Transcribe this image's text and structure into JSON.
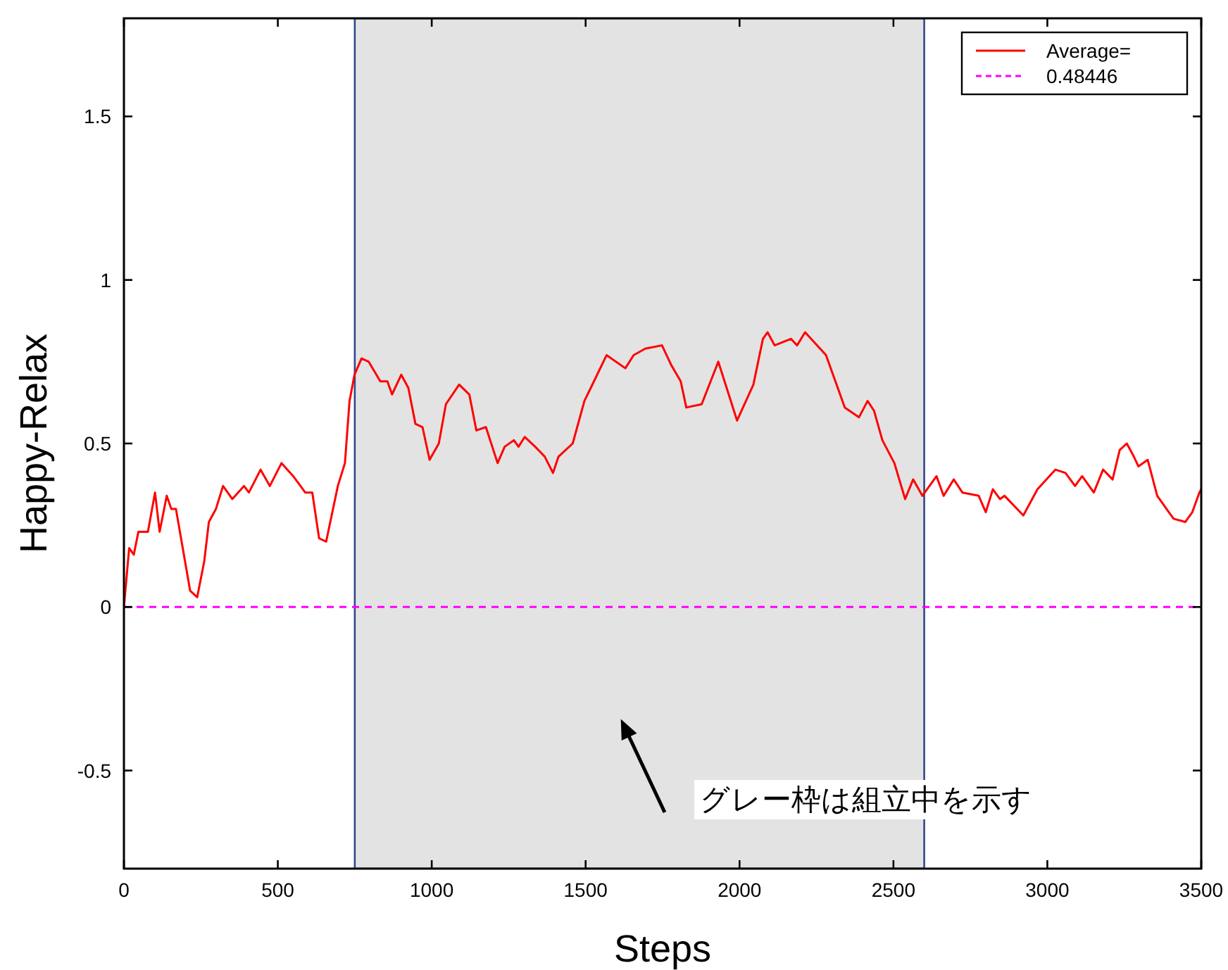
{
  "chart_data": {
    "type": "line",
    "xlabel": "Steps",
    "ylabel": "Happy-Relax",
    "xlim": [
      0,
      3500
    ],
    "ylim": [
      -0.8,
      1.8
    ],
    "xticks": [
      0,
      500,
      1000,
      1500,
      2000,
      2500,
      3000,
      3500
    ],
    "yticks": [
      {
        "value": -0.5,
        "label": "-0.5"
      },
      0,
      0.5,
      1,
      1.5
    ],
    "grid": false,
    "legend": "top right",
    "line_style": "solid",
    "marker": "none",
    "series": [
      {
        "name": "Average=",
        "color": "#ff0000",
        "x": [
          0,
          17,
          32,
          47,
          78,
          101,
          116,
          139,
          154,
          169,
          215,
          238,
          261,
          276,
          299,
          322,
          352,
          390,
          406,
          444,
          474,
          512,
          550,
          589,
          612,
          634,
          657,
          695,
          718,
          733,
          749,
          772,
          795,
          833,
          856,
          871,
          901,
          924,
          947,
          970,
          993,
          1023,
          1046,
          1089,
          1122,
          1145,
          1176,
          1214,
          1237,
          1267,
          1282,
          1302,
          1336,
          1367,
          1394,
          1412,
          1458,
          1496,
          1527,
          1568,
          1629,
          1656,
          1694,
          1748,
          1778,
          1809,
          1827,
          1877,
          1931,
          1992,
          2045,
          2076,
          2091,
          2114,
          2167,
          2187,
          2213,
          2281,
          2342,
          2388,
          2416,
          2437,
          2464,
          2503,
          2538,
          2564,
          2594,
          2640,
          2663,
          2696,
          2724,
          2777,
          2800,
          2823,
          2846,
          2861,
          2922,
          2968,
          3026,
          3059,
          3090,
          3113,
          3151,
          3181,
          3212,
          3235,
          3258,
          3281,
          3296,
          3326,
          3357,
          3387,
          3410,
          3448,
          3471,
          3494,
          3500
        ],
        "values": [
          0,
          0.18,
          0.16,
          0.23,
          0.23,
          0.35,
          0.23,
          0.34,
          0.3,
          0.3,
          0.05,
          0.03,
          0.14,
          0.26,
          0.3,
          0.37,
          0.33,
          0.37,
          0.35,
          0.42,
          0.37,
          0.44,
          0.4,
          0.35,
          0.35,
          0.21,
          0.2,
          0.37,
          0.44,
          0.63,
          0.71,
          0.76,
          0.75,
          0.69,
          0.69,
          0.65,
          0.71,
          0.67,
          0.56,
          0.55,
          0.45,
          0.5,
          0.62,
          0.68,
          0.65,
          0.54,
          0.55,
          0.44,
          0.49,
          0.51,
          0.49,
          0.52,
          0.49,
          0.46,
          0.41,
          0.46,
          0.5,
          0.63,
          0.69,
          0.77,
          0.73,
          0.77,
          0.79,
          0.8,
          0.74,
          0.69,
          0.61,
          0.62,
          0.75,
          0.57,
          0.68,
          0.82,
          0.84,
          0.8,
          0.82,
          0.8,
          0.84,
          0.77,
          0.61,
          0.58,
          0.63,
          0.6,
          0.51,
          0.44,
          0.33,
          0.39,
          0.34,
          0.4,
          0.34,
          0.39,
          0.35,
          0.34,
          0.29,
          0.36,
          0.33,
          0.34,
          0.28,
          0.36,
          0.42,
          0.41,
          0.37,
          0.4,
          0.35,
          0.42,
          0.39,
          0.48,
          0.5,
          0.46,
          0.43,
          0.45,
          0.34,
          0.3,
          0.27,
          0.26,
          0.29,
          0.35,
          0.36
        ]
      },
      {
        "name": "0.48446",
        "color": "#ff00ff",
        "line_style": "dashed",
        "x": [
          0,
          3500
        ],
        "values": [
          0,
          0
        ]
      }
    ],
    "bands": [
      {
        "axis": "x",
        "from": 750,
        "to": 2600,
        "color": "#e3e3e3"
      }
    ],
    "annotations": [
      "グレー枠は組立中を示す"
    ]
  }
}
